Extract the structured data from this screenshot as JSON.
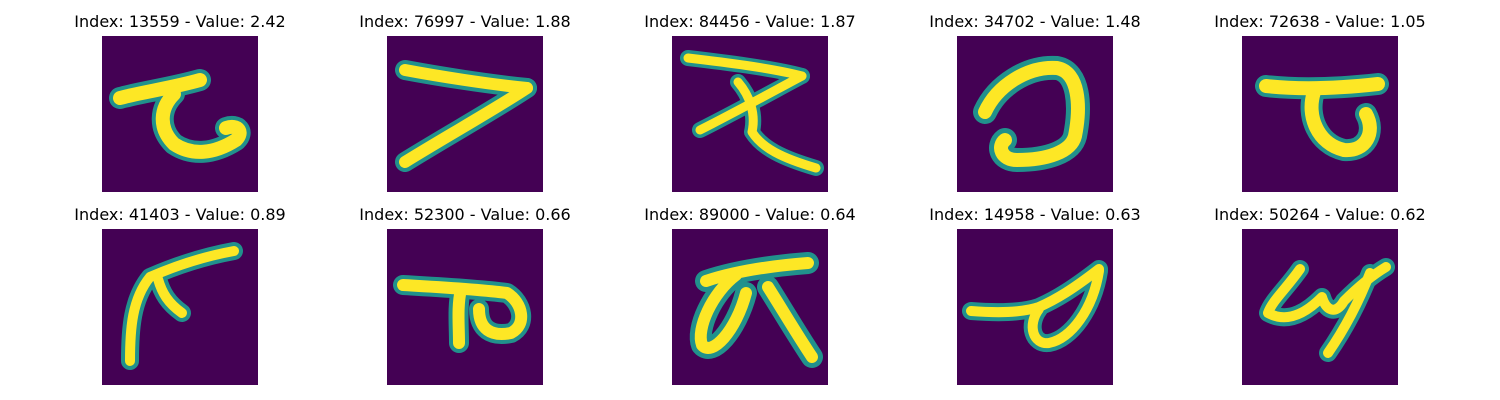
{
  "figure": {
    "colors": {
      "background": "#440154",
      "stroke_core": "#fde725",
      "stroke_edge": "#21918c"
    },
    "panels": [
      {
        "title": "Index: 13559 - Value: 2.42"
      },
      {
        "title": "Index: 76997 - Value: 1.88"
      },
      {
        "title": "Index: 84456 - Value: 1.87"
      },
      {
        "title": "Index: 34702 - Value: 1.48"
      },
      {
        "title": "Index: 72638 - Value: 1.05"
      },
      {
        "title": "Index: 41403 - Value: 0.89"
      },
      {
        "title": "Index: 52300 - Value: 0.66"
      },
      {
        "title": "Index: 89000 - Value: 0.64"
      },
      {
        "title": "Index: 14958 - Value: 0.63"
      },
      {
        "title": "Index: 50264 - Value: 0.62"
      }
    ]
  }
}
